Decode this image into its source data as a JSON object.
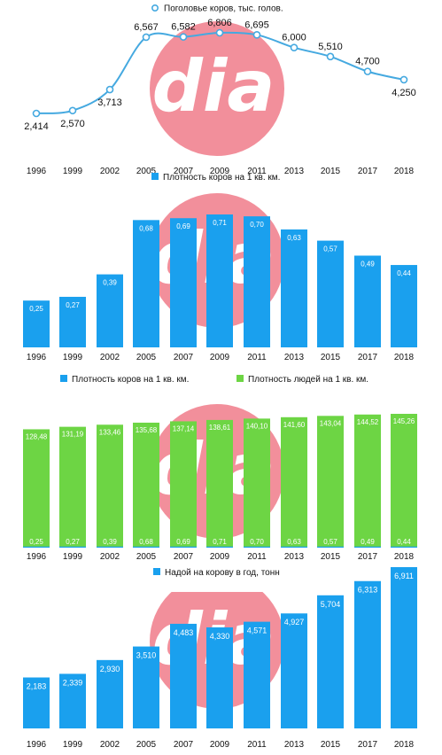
{
  "colors": {
    "blue": "#1aa0ee",
    "line": "#45a9e0",
    "green": "#6dd544",
    "watermark": "#f28f9b"
  },
  "watermark_text": "dia",
  "chart_data": [
    {
      "type": "line",
      "legend": [
        {
          "label": "Поголовье коров,  тыс. голов.",
          "color": "#45a9e0",
          "icon": "circle-marker"
        }
      ],
      "categories": [
        "1996",
        "1999",
        "2002",
        "2005",
        "2007",
        "2009",
        "2011",
        "2013",
        "2015",
        "2017",
        "2018"
      ],
      "series": [
        {
          "name": "Поголовье коров,  тыс. голов.",
          "values": [
            2414,
            2570,
            3713,
            6567,
            6582,
            6806,
            6695,
            6000,
            5510,
            4700,
            4250
          ],
          "labels": [
            "2,414",
            "2,570",
            "3,713",
            "6,567",
            "6,582",
            "6,806",
            "6,695",
            "6,000",
            "5,510",
            "4,700",
            "4,250"
          ]
        }
      ]
    },
    {
      "type": "bar",
      "legend": [
        {
          "label": "Плотность коров на 1 кв. км.",
          "color": "#1aa0ee",
          "icon": "square"
        }
      ],
      "categories": [
        "1996",
        "1999",
        "2002",
        "2005",
        "2007",
        "2009",
        "2011",
        "2013",
        "2015",
        "2017",
        "2018"
      ],
      "series": [
        {
          "name": "Плотность коров на 1 кв. км.",
          "values": [
            0.25,
            0.27,
            0.39,
            0.68,
            0.69,
            0.71,
            0.7,
            0.63,
            0.57,
            0.49,
            0.44
          ],
          "labels": [
            "0,25",
            "0,27",
            "0,39",
            "0,68",
            "0,69",
            "0,71",
            "0,70",
            "0,63",
            "0,57",
            "0,49",
            "0,44"
          ]
        }
      ]
    },
    {
      "type": "bar",
      "legend": [
        {
          "label": "Плотность коров на 1 кв. км.",
          "color": "#1aa0ee",
          "icon": "square"
        },
        {
          "label": "Плотность людей на 1 кв. км.",
          "color": "#6dd544",
          "icon": "square"
        }
      ],
      "categories": [
        "1996",
        "1999",
        "2002",
        "2005",
        "2007",
        "2009",
        "2011",
        "2013",
        "2015",
        "2017",
        "2018"
      ],
      "series": [
        {
          "name": "Плотность коров на 1 кв. км.",
          "values": [
            0.25,
            0.27,
            0.39,
            0.68,
            0.69,
            0.71,
            0.7,
            0.63,
            0.57,
            0.49,
            0.44
          ],
          "labels": [
            "0,25",
            "0,27",
            "0,39",
            "0,68",
            "0,69",
            "0,71",
            "0,70",
            "0,63",
            "0,57",
            "0,49",
            "0,44"
          ]
        },
        {
          "name": "Плотность людей на 1 кв. км.",
          "values": [
            128.48,
            131.19,
            133.46,
            135.68,
            137.14,
            138.61,
            140.1,
            141.6,
            143.04,
            144.52,
            145.26
          ],
          "labels": [
            "128,48",
            "131,19",
            "133,46",
            "135,68",
            "137,14",
            "138,61",
            "140,10",
            "141,60",
            "143,04",
            "144,52",
            "145,26"
          ]
        }
      ]
    },
    {
      "type": "bar",
      "legend": [
        {
          "label": "Надой на корову в год, тонн",
          "color": "#1aa0ee",
          "icon": "square"
        }
      ],
      "categories": [
        "1996",
        "1999",
        "2002",
        "2005",
        "2007",
        "2009",
        "2011",
        "2013",
        "2015",
        "2017",
        "2018"
      ],
      "series": [
        {
          "name": "Надой на корову в год, тонн",
          "values": [
            2183,
            2339,
            2930,
            3510,
            4483,
            4330,
            4571,
            4927,
            5704,
            6313,
            6911
          ],
          "labels": [
            "2,183",
            "2,339",
            "2,930",
            "3,510",
            "4,483",
            "4,330",
            "4,571",
            "4,927",
            "5,704",
            "6,313",
            "6,911"
          ]
        }
      ]
    }
  ]
}
